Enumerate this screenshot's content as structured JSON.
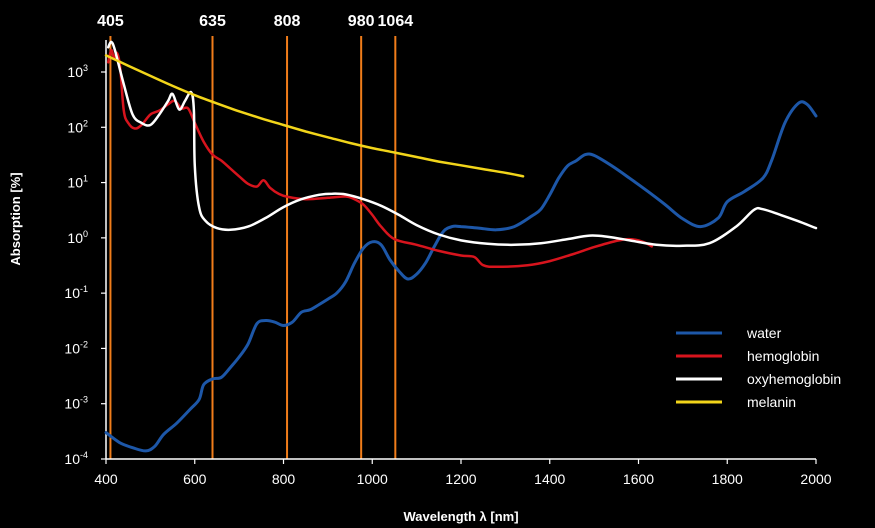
{
  "chart_data": {
    "type": "line",
    "xlabel": "Wavelength λ [nm]",
    "ylabel": "Absorption [%]",
    "xlim": [
      400,
      2000
    ],
    "ylim_log10": [
      -4,
      3
    ],
    "yscale": "log",
    "grid": false,
    "legend_position": "bottom-right",
    "x_ticks": [
      "400",
      "600",
      "800",
      "1000",
      "1200",
      "1400",
      "1600",
      "1800",
      "2000"
    ],
    "y_ticks": [
      {
        "base": "10",
        "exp": "-4"
      },
      {
        "base": "10",
        "exp": "-3"
      },
      {
        "base": "10",
        "exp": "-2"
      },
      {
        "base": "10",
        "exp": "-1"
      },
      {
        "base": "10",
        "exp": "0"
      },
      {
        "base": "10",
        "exp": "1"
      },
      {
        "base": "10",
        "exp": "2"
      },
      {
        "base": "10",
        "exp": "3"
      }
    ],
    "wavelength_markers": [
      {
        "label": "405",
        "x": 410
      },
      {
        "label": "635",
        "x": 640
      },
      {
        "label": "808",
        "x": 808
      },
      {
        "label": "980",
        "x": 975
      },
      {
        "label": "1064",
        "x": 1052
      }
    ],
    "marker_color": "#f07d1a",
    "series": [
      {
        "name": "water",
        "color": "#1d57a8",
        "points": [
          [
            400,
            0.0003
          ],
          [
            430,
            0.0002
          ],
          [
            460,
            0.00016
          ],
          [
            490,
            0.00014
          ],
          [
            510,
            0.00017
          ],
          [
            530,
            0.00028
          ],
          [
            560,
            0.00045
          ],
          [
            590,
            0.0008
          ],
          [
            610,
            0.0012
          ],
          [
            620,
            0.0022
          ],
          [
            640,
            0.0028
          ],
          [
            660,
            0.003
          ],
          [
            680,
            0.0045
          ],
          [
            700,
            0.007
          ],
          [
            720,
            0.012
          ],
          [
            740,
            0.028
          ],
          [
            760,
            0.032
          ],
          [
            780,
            0.03
          ],
          [
            800,
            0.026
          ],
          [
            820,
            0.03
          ],
          [
            840,
            0.045
          ],
          [
            860,
            0.05
          ],
          [
            880,
            0.062
          ],
          [
            900,
            0.078
          ],
          [
            920,
            0.1
          ],
          [
            940,
            0.16
          ],
          [
            960,
            0.35
          ],
          [
            980,
            0.65
          ],
          [
            1000,
            0.85
          ],
          [
            1020,
            0.75
          ],
          [
            1040,
            0.4
          ],
          [
            1060,
            0.25
          ],
          [
            1080,
            0.18
          ],
          [
            1100,
            0.22
          ],
          [
            1120,
            0.35
          ],
          [
            1140,
            0.7
          ],
          [
            1160,
            1.3
          ],
          [
            1180,
            1.6
          ],
          [
            1200,
            1.6
          ],
          [
            1240,
            1.5
          ],
          [
            1280,
            1.4
          ],
          [
            1320,
            1.6
          ],
          [
            1360,
            2.5
          ],
          [
            1380,
            3.3
          ],
          [
            1400,
            6.0
          ],
          [
            1420,
            12.0
          ],
          [
            1440,
            20.0
          ],
          [
            1460,
            25.0
          ],
          [
            1480,
            32.0
          ],
          [
            1500,
            31.0
          ],
          [
            1540,
            20.0
          ],
          [
            1580,
            12.0
          ],
          [
            1620,
            7.0
          ],
          [
            1660,
            4.0
          ],
          [
            1700,
            2.2
          ],
          [
            1740,
            1.6
          ],
          [
            1780,
            2.3
          ],
          [
            1800,
            4.5
          ],
          [
            1840,
            7.0
          ],
          [
            1880,
            12.0
          ],
          [
            1900,
            25.0
          ],
          [
            1930,
            120.0
          ],
          [
            1960,
            270.0
          ],
          [
            1980,
            260.0
          ],
          [
            2000,
            160.0
          ]
        ]
      },
      {
        "name": "hemoglobin",
        "color": "#d7141d",
        "points": [
          [
            405,
            1500
          ],
          [
            412,
            2500
          ],
          [
            418,
            1800
          ],
          [
            425,
            2200
          ],
          [
            432,
            1200
          ],
          [
            440,
            200
          ],
          [
            450,
            120
          ],
          [
            465,
            95
          ],
          [
            480,
            110
          ],
          [
            500,
            170
          ],
          [
            520,
            200
          ],
          [
            540,
            260
          ],
          [
            555,
            300
          ],
          [
            570,
            220
          ],
          [
            585,
            220
          ],
          [
            600,
            120
          ],
          [
            620,
            55
          ],
          [
            640,
            32
          ],
          [
            660,
            25
          ],
          [
            680,
            18
          ],
          [
            700,
            13
          ],
          [
            720,
            9.5
          ],
          [
            740,
            8.5
          ],
          [
            755,
            11
          ],
          [
            770,
            8
          ],
          [
            790,
            6.2
          ],
          [
            810,
            5.5
          ],
          [
            850,
            5.0
          ],
          [
            900,
            5.3
          ],
          [
            940,
            5.6
          ],
          [
            960,
            5.0
          ],
          [
            980,
            4.0
          ],
          [
            1000,
            2.6
          ],
          [
            1020,
            1.6
          ],
          [
            1050,
            0.95
          ],
          [
            1100,
            0.75
          ],
          [
            1150,
            0.58
          ],
          [
            1200,
            0.48
          ],
          [
            1230,
            0.45
          ],
          [
            1250,
            0.32
          ],
          [
            1280,
            0.3
          ],
          [
            1350,
            0.32
          ],
          [
            1400,
            0.38
          ],
          [
            1450,
            0.5
          ],
          [
            1500,
            0.68
          ],
          [
            1550,
            0.88
          ],
          [
            1580,
            0.95
          ],
          [
            1610,
            0.85
          ],
          [
            1630,
            0.7
          ]
        ]
      },
      {
        "name": "oxyhemoglobin",
        "color": "#ffffff",
        "points": [
          [
            405,
            2800
          ],
          [
            412,
            3500
          ],
          [
            420,
            2500
          ],
          [
            440,
            600
          ],
          [
            460,
            170
          ],
          [
            480,
            120
          ],
          [
            500,
            110
          ],
          [
            520,
            170
          ],
          [
            540,
            300
          ],
          [
            550,
            400
          ],
          [
            565,
            210
          ],
          [
            578,
            300
          ],
          [
            592,
            430
          ],
          [
            598,
            200
          ],
          [
            600,
            20
          ],
          [
            610,
            3.5
          ],
          [
            625,
            2.0
          ],
          [
            650,
            1.5
          ],
          [
            680,
            1.4
          ],
          [
            720,
            1.6
          ],
          [
            760,
            2.3
          ],
          [
            800,
            3.6
          ],
          [
            840,
            5.0
          ],
          [
            880,
            6.0
          ],
          [
            910,
            6.3
          ],
          [
            940,
            6.1
          ],
          [
            980,
            5.0
          ],
          [
            1020,
            3.8
          ],
          [
            1060,
            2.6
          ],
          [
            1100,
            1.7
          ],
          [
            1150,
            1.15
          ],
          [
            1200,
            0.9
          ],
          [
            1260,
            0.78
          ],
          [
            1320,
            0.75
          ],
          [
            1380,
            0.8
          ],
          [
            1440,
            0.95
          ],
          [
            1490,
            1.1
          ],
          [
            1530,
            1.05
          ],
          [
            1580,
            0.9
          ],
          [
            1640,
            0.75
          ],
          [
            1700,
            0.72
          ],
          [
            1760,
            0.8
          ],
          [
            1820,
            1.6
          ],
          [
            1860,
            3.2
          ],
          [
            1880,
            3.3
          ],
          [
            1920,
            2.6
          ],
          [
            1960,
            2.0
          ],
          [
            2000,
            1.5
          ]
        ]
      },
      {
        "name": "melanin",
        "color": "#f2d51a",
        "points": [
          [
            400,
            2000
          ],
          [
            450,
            1300
          ],
          [
            500,
            850
          ],
          [
            550,
            560
          ],
          [
            600,
            380
          ],
          [
            650,
            270
          ],
          [
            700,
            195
          ],
          [
            750,
            145
          ],
          [
            800,
            110
          ],
          [
            850,
            84
          ],
          [
            900,
            66
          ],
          [
            950,
            52
          ],
          [
            1000,
            42
          ],
          [
            1050,
            35
          ],
          [
            1100,
            29
          ],
          [
            1150,
            24
          ],
          [
            1200,
            20.5
          ],
          [
            1250,
            17.5
          ],
          [
            1300,
            15
          ],
          [
            1340,
            13
          ]
        ]
      }
    ]
  }
}
